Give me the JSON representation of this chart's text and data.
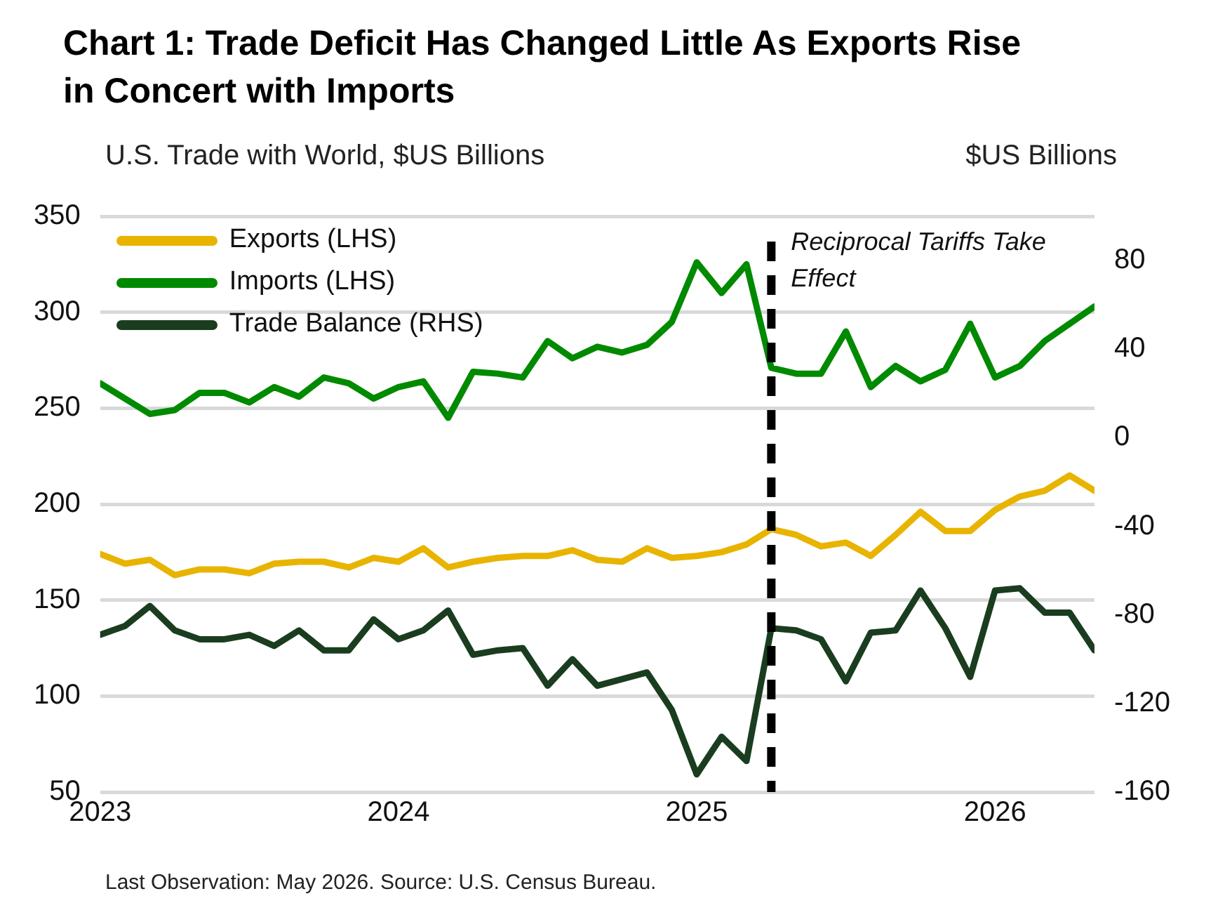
{
  "chart_data": {
    "type": "line",
    "title": "Chart 1: Trade Deficit Has Changed Little As Exports Rise in Concert with Imports",
    "ylabel": "U.S. Trade with World, $US Billions",
    "y2label": "$US Billions",
    "x": [
      "2023-01",
      "2023-02",
      "2023-03",
      "2023-04",
      "2023-05",
      "2023-06",
      "2023-07",
      "2023-08",
      "2023-09",
      "2023-10",
      "2023-11",
      "2023-12",
      "2024-01",
      "2024-02",
      "2024-03",
      "2024-04",
      "2024-05",
      "2024-06",
      "2024-07",
      "2024-08",
      "2024-09",
      "2024-10",
      "2024-11",
      "2024-12",
      "2025-01",
      "2025-02",
      "2025-03",
      "2025-04",
      "2025-05",
      "2025-06",
      "2025-07",
      "2025-08",
      "2025-09",
      "2025-10",
      "2025-11",
      "2025-12",
      "2026-01",
      "2026-02",
      "2026-03",
      "2026-04",
      "2026-05"
    ],
    "series": [
      {
        "name": "Exports (LHS)",
        "color": "#e8b400",
        "values": [
          174,
          169,
          171,
          163,
          166,
          166,
          164,
          169,
          170,
          170,
          167,
          172,
          170,
          177,
          167,
          170,
          172,
          173,
          173,
          176,
          171,
          170,
          177,
          172,
          173,
          175,
          179,
          187,
          184,
          178,
          180,
          173,
          184,
          196,
          186,
          186,
          197,
          204,
          207,
          215,
          207
        ]
      },
      {
        "name": "Imports (LHS)",
        "color": "#008a00",
        "values": [
          263,
          255,
          247,
          249,
          258,
          258,
          253,
          261,
          256,
          266,
          263,
          255,
          261,
          264,
          245,
          269,
          268,
          266,
          285,
          276,
          282,
          279,
          283,
          295,
          326,
          310,
          325,
          271,
          268,
          268,
          290,
          261,
          272,
          264,
          270,
          294,
          266,
          272,
          285,
          294,
          303
        ]
      },
      {
        "name": "Trade Balance (RHS)",
        "color": "#1a3d1f",
        "axis": "y2",
        "values": [
          -89,
          -85,
          -76,
          -87,
          -91,
          -91,
          -89,
          -94,
          -87,
          -96,
          -96,
          -82,
          -91,
          -87,
          -78,
          -98,
          -96,
          -95,
          -112,
          -100,
          -112,
          -109,
          -106,
          -123,
          -152,
          -135,
          -146,
          -86,
          -87,
          -91,
          -110,
          -88,
          -87,
          -69,
          -86,
          -108,
          -69,
          -68,
          -79,
          -79,
          -96
        ]
      }
    ],
    "xlim": [
      "2023-01",
      "2026-05"
    ],
    "xticks": [
      {
        "value": "2023-01",
        "label": "2023"
      },
      {
        "value": "2024-01",
        "label": "2024"
      },
      {
        "value": "2025-01",
        "label": "2025"
      },
      {
        "value": "2026-01",
        "label": "2026"
      }
    ],
    "ylim": [
      50,
      350
    ],
    "yticks": [
      50,
      100,
      150,
      200,
      250,
      300,
      350
    ],
    "y2lim": [
      -160,
      100
    ],
    "y2ticks": [
      -160,
      -120,
      -80,
      -40,
      0,
      40,
      80
    ],
    "ref_lines": [
      {
        "axis": "x",
        "value": "2025-04",
        "label": "Reciprocal Tariffs Take Effect",
        "color": "#000000",
        "line_style": "dashed"
      }
    ],
    "annotations": [
      "Last Observation: May 2026. Source: U.S. Census Bureau."
    ],
    "grid": "y",
    "legend": "top left",
    "marker": "none",
    "line_style": "solid"
  }
}
